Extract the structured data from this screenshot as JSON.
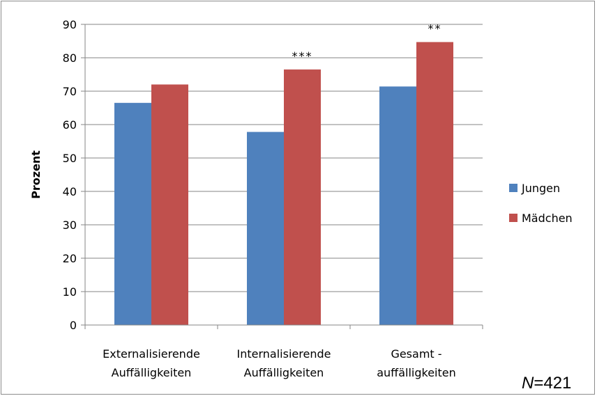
{
  "chart_data": {
    "type": "bar",
    "ylabel": "Prozent",
    "ylim": [
      0,
      90
    ],
    "yticks": [
      0,
      10,
      20,
      30,
      40,
      50,
      60,
      70,
      80,
      90
    ],
    "categories": [
      [
        "Externalisierende",
        "Auffälligkeiten"
      ],
      [
        "Internalisierende",
        "Auffälligkeiten"
      ],
      [
        "Gesamt -",
        "auffälligkeiten"
      ]
    ],
    "series": [
      {
        "name": "Jungen",
        "color": "#4f81bd",
        "values": [
          66.5,
          57.8,
          71.4
        ]
      },
      {
        "name": "Mädchen",
        "color": "#c0504d",
        "values": [
          72.0,
          76.5,
          84.7
        ]
      }
    ],
    "annotations": [
      "",
      "***",
      "**"
    ],
    "grid": true,
    "legend_position": "right"
  },
  "note": {
    "italic": "N",
    "rest": "=421"
  }
}
